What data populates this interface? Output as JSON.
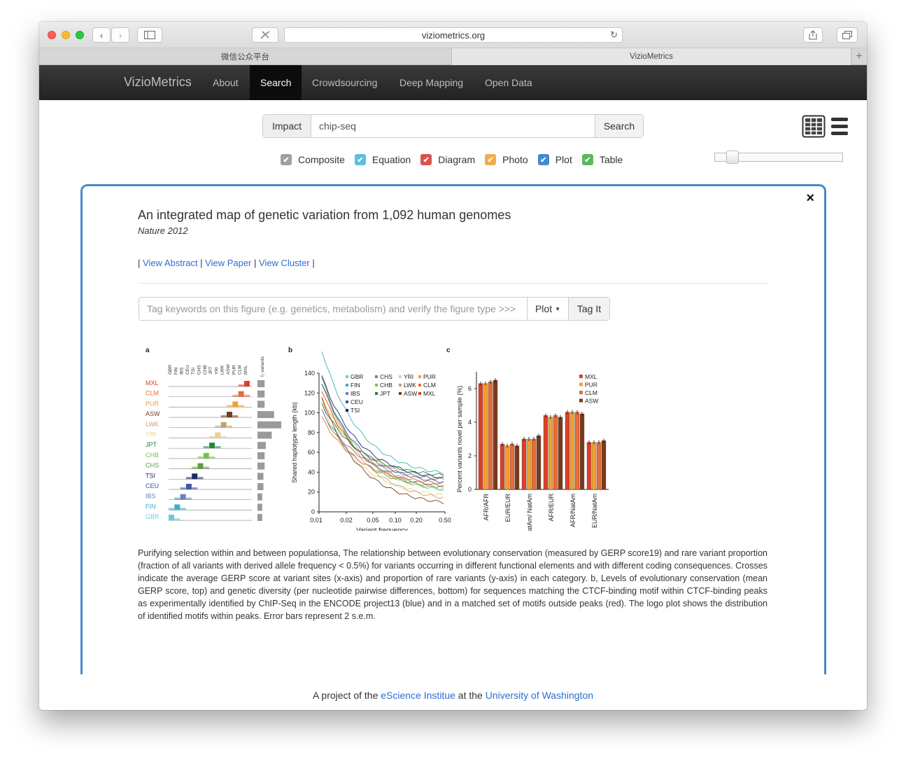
{
  "browser": {
    "url": "viziometrics.org",
    "tabs": [
      "微信公众平台",
      "VizioMetrics"
    ]
  },
  "navbar": {
    "brand": "VizioMetrics",
    "items": [
      "About",
      "Search",
      "Crowdsourcing",
      "Deep Mapping",
      "Open Data"
    ],
    "active": "Search"
  },
  "search": {
    "mode_label": "Impact",
    "query": "chip-seq",
    "button_label": "Search"
  },
  "filters": [
    {
      "label": "Composite",
      "color": "#a0a0a0",
      "checked": true
    },
    {
      "label": "Equation",
      "color": "#5bc0de",
      "checked": true
    },
    {
      "label": "Diagram",
      "color": "#d9534f",
      "checked": true
    },
    {
      "label": "Photo",
      "color": "#f0ad4e",
      "checked": true
    },
    {
      "label": "Plot",
      "color": "#428bca",
      "checked": true
    },
    {
      "label": "Table",
      "color": "#5cb85c",
      "checked": true
    }
  ],
  "slider": {
    "value": 0.1
  },
  "card": {
    "close_glyph": "×",
    "title": "An integrated map of genetic variation from 1,092 human genomes",
    "journal": "Nature 2012",
    "links": [
      "View Abstract",
      "View Paper",
      "View Cluster"
    ],
    "tag_placeholder": "Tag keywords on this figure (e.g. genetics, metabolism) and verify the figure type >>>",
    "tag_type": "Plot",
    "tag_button": "Tag It",
    "caption": "Purifying selection within and between populationsa, The relationship between evolutionary conservation (measured by GERP score19) and rare variant proportion (fraction of all variants with derived allele frequency < 0.5%) for variants occurring in different functional elements and with different coding consequences. Crosses indicate the average GERP score at variant sites (x-axis) and proportion of rare variants (y-axis) in each category. b, Levels of evolutionary conservation (mean GERP score, top) and genetic diversity (per nucleotide pairwise differences, bottom) for sequences matching the CTCF-binding motif within CTCF-binding peaks as experimentally identified by ChIP-Seq in the ENCODE project13 (blue) and in a matched set of motifs outside peaks (red). The logo plot shows the distribution of identified motifs within peaks. Error bars represent 2 s.e.m."
  },
  "figure": {
    "panel_a": {
      "label": "a",
      "rows": [
        "MXL",
        "CLM",
        "PUR",
        "ASW",
        "LWK",
        "YRI",
        "JPT",
        "CHB",
        "CHS",
        "TSI",
        "CEU",
        "IBS",
        "FIN",
        "GBR"
      ],
      "row_colors": [
        "#d9412b",
        "#e86a3a",
        "#f0a030",
        "#7a3b1a",
        "#c8a070",
        "#e8d090",
        "#1a8a3a",
        "#7ac050",
        "#5aa040",
        "#1a2a60",
        "#3a5a9a",
        "#6a80c0",
        "#40b0c0",
        "#70c8d8"
      ],
      "cols": [
        "GBR",
        "FIN",
        "IBS",
        "CEU",
        "TSI",
        "CHS",
        "CHB",
        "JPT",
        "YRI",
        "LWK",
        "ASW",
        "PUR",
        "CLM",
        "MXL"
      ],
      "side_label": "f₂ variants",
      "side_values": [
        0.3,
        0.3,
        0.3,
        0.7,
        1.0,
        0.6,
        0.35,
        0.3,
        0.3,
        0.25,
        0.25,
        0.2,
        0.2,
        0.2
      ]
    },
    "panel_b": {
      "label": "b",
      "ylabel": "Shared haplotype length (kb)",
      "xlabel": "Variant frequency",
      "yticks": [
        "0",
        "20",
        "40",
        "60",
        "80",
        "100",
        "120",
        "140"
      ],
      "xticks": [
        "0.01",
        "0.02",
        "0.05",
        "0.10",
        "0.20",
        "0.50"
      ],
      "legend": [
        {
          "name": "GBR",
          "color": "#70c8d8"
        },
        {
          "name": "CHS",
          "color": "#5aa040"
        },
        {
          "name": "YRI",
          "color": "#e8d090"
        },
        {
          "name": "PUR",
          "color": "#f0a030"
        },
        {
          "name": "FIN",
          "color": "#40b0c0"
        },
        {
          "name": "CHB",
          "color": "#7ac050"
        },
        {
          "name": "LWK",
          "color": "#c8a070"
        },
        {
          "name": "CLM",
          "color": "#e86a3a"
        },
        {
          "name": "IBS",
          "color": "#6a80c0"
        },
        {
          "name": "JPT",
          "color": "#1a8a3a"
        },
        {
          "name": "ASW",
          "color": "#7a3b1a"
        },
        {
          "name": "MXL",
          "color": "#d9412b"
        },
        {
          "name": "CEU",
          "color": "#3a5a9a"
        },
        {
          "name": "TSI",
          "color": "#1a2a60"
        }
      ]
    },
    "panel_c": {
      "label": "c",
      "ylabel": "Percent variants novel per sample (%)",
      "yticks": [
        "0",
        "2",
        "4",
        "6"
      ],
      "categories": [
        "AFR/AFR",
        "EUR/EUR",
        "NatAm/ NatAm",
        "AFR/EUR",
        "AFR/NatAm",
        "EUR/NatAm"
      ],
      "legend": [
        {
          "name": "MXL",
          "color": "#d9412b"
        },
        {
          "name": "PUR",
          "color": "#f0a030"
        },
        {
          "name": "CLM",
          "color": "#e86a3a"
        },
        {
          "name": "ASW",
          "color": "#7a3b1a"
        }
      ],
      "values": [
        [
          6.3,
          6.3,
          6.4,
          6.5
        ],
        [
          2.7,
          2.6,
          2.7,
          2.6
        ],
        [
          3.0,
          3.0,
          3.0,
          3.2
        ],
        [
          4.4,
          4.3,
          4.4,
          4.3
        ],
        [
          4.6,
          4.6,
          4.6,
          4.5
        ],
        [
          2.8,
          2.8,
          2.8,
          2.9
        ]
      ]
    }
  },
  "footer": {
    "prefix": "A project of the ",
    "link1": "eScience Institue",
    "middle": " at the ",
    "link2": "University of Washington"
  }
}
